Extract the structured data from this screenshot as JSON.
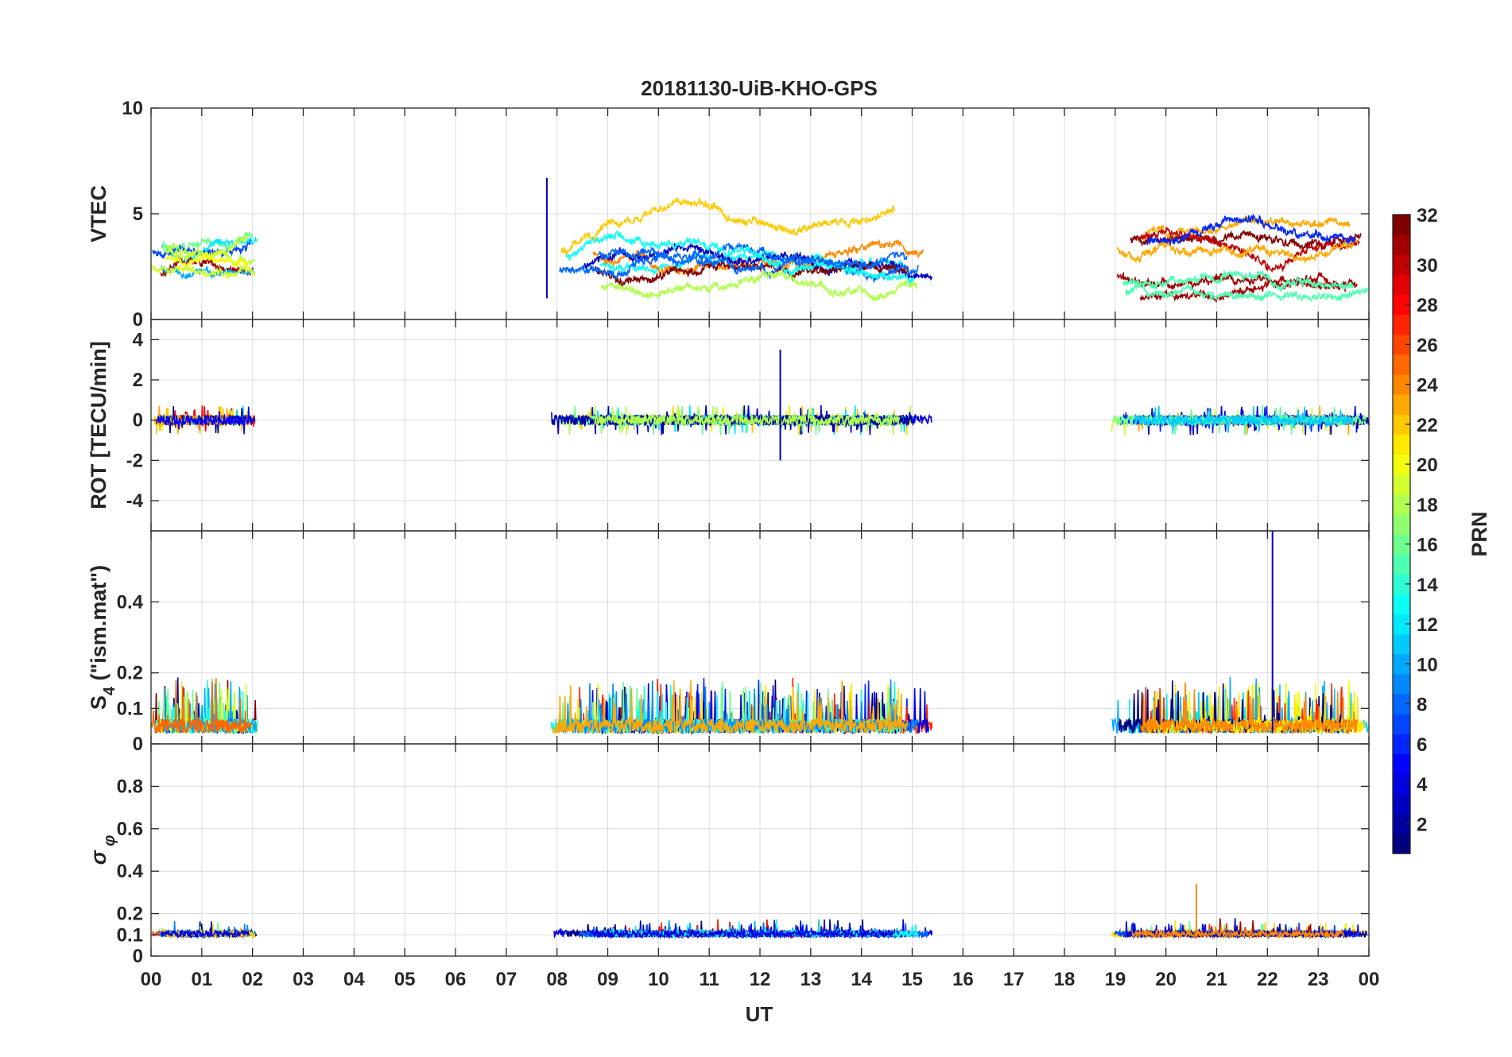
{
  "chart_data": {
    "type": "line",
    "title": "20181130-UiB-KHO-GPS",
    "xlabel": "UT",
    "x_range_hours": [
      0,
      24
    ],
    "x_ticklabels": [
      "00",
      "01",
      "02",
      "03",
      "04",
      "05",
      "06",
      "07",
      "08",
      "09",
      "10",
      "11",
      "12",
      "13",
      "14",
      "15",
      "16",
      "17",
      "18",
      "19",
      "20",
      "21",
      "22",
      "23",
      "00"
    ],
    "data_segments_ut_hours": [
      [
        0.0,
        2.1
      ],
      [
        7.8,
        15.4
      ],
      [
        18.9,
        24.0
      ]
    ],
    "panels": [
      {
        "id": "vtec",
        "ylabel": "VTEC",
        "ylim": [
          0,
          10
        ],
        "yticks": [
          0,
          5,
          10
        ],
        "ytick_labels": [
          "0",
          "5",
          "10"
        ],
        "typical_range": [
          1,
          6
        ],
        "peak_value": 6.7
      },
      {
        "id": "rot",
        "ylabel": "ROT [TECU/min]",
        "ylim": [
          -5.5,
          5
        ],
        "yticks": [
          -4,
          -2,
          0,
          2,
          4
        ],
        "ytick_labels": [
          "-4",
          "-2",
          "0",
          "2",
          "4"
        ],
        "typical_range": [
          -0.4,
          0.4
        ],
        "peak_value": 3.5,
        "trough_value": -2.0
      },
      {
        "id": "s4",
        "ylabel_main": "S",
        "ylabel_sub": "4",
        "ylabel_tail": " (\"ism.mat\")",
        "ylim": [
          0,
          0.6
        ],
        "yticks": [
          0,
          0.1,
          0.2,
          0.4
        ],
        "ytick_labels": [
          "0",
          "0.1",
          "0.2",
          "0.4"
        ],
        "typical_range": [
          0.03,
          0.15
        ],
        "peak_value": 0.6
      },
      {
        "id": "sigma_phi",
        "ylabel_main": "σ",
        "ylabel_sub": "φ",
        "ylim": [
          0,
          1
        ],
        "yticks": [
          0,
          0.1,
          0.2,
          0.4,
          0.6,
          0.8
        ],
        "ytick_labels": [
          "0",
          "0.1",
          "0.2",
          "0.4",
          "0.6",
          "0.8"
        ],
        "typical_range": [
          0.08,
          0.13
        ],
        "peak_value": 0.34
      }
    ],
    "colorbar": {
      "label": "PRN",
      "colormap": "jet",
      "range": [
        1,
        32
      ],
      "ticks": [
        2,
        4,
        6,
        8,
        10,
        12,
        14,
        16,
        18,
        20,
        22,
        24,
        26,
        28,
        30,
        32
      ],
      "tick_labels": [
        "2",
        "4",
        "6",
        "8",
        "10",
        "12",
        "14",
        "16",
        "18",
        "20",
        "22",
        "24",
        "26",
        "28",
        "30",
        "32"
      ]
    },
    "series_note": "One trace per GPS satellite PRN, coloured by PRN on the jet colormap"
  }
}
